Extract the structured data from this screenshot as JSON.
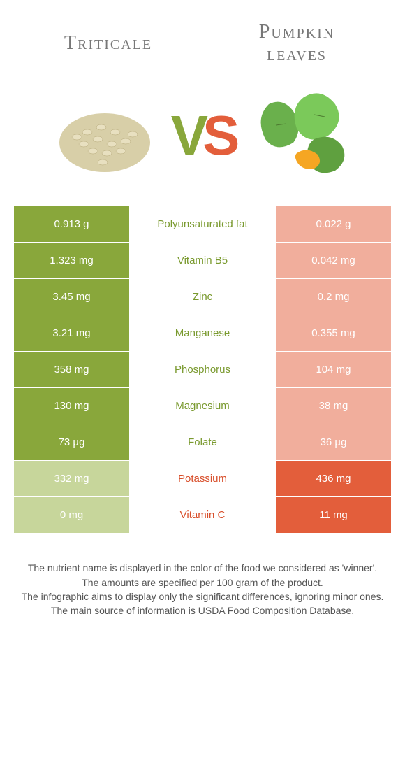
{
  "left_food": "Triticale",
  "right_food_line1": "Pumpkin",
  "right_food_line2": "leaves",
  "vs_v": "V",
  "vs_s": "S",
  "colors": {
    "green_strong": "#89a73b",
    "green_weak": "#c7d69b",
    "orange_strong": "#e35e3b",
    "orange_weak": "#f1ae9c",
    "label_green": "#7a9a2f",
    "label_orange": "#d84e2a"
  },
  "rows": [
    {
      "left": "0.913 g",
      "label": "Polyunsaturated fat",
      "right": "0.022 g",
      "winner": "left"
    },
    {
      "left": "1.323 mg",
      "label": "Vitamin B5",
      "right": "0.042 mg",
      "winner": "left"
    },
    {
      "left": "3.45 mg",
      "label": "Zinc",
      "right": "0.2 mg",
      "winner": "left"
    },
    {
      "left": "3.21 mg",
      "label": "Manganese",
      "right": "0.355 mg",
      "winner": "left"
    },
    {
      "left": "358 mg",
      "label": "Phosphorus",
      "right": "104 mg",
      "winner": "left"
    },
    {
      "left": "130 mg",
      "label": "Magnesium",
      "right": "38 mg",
      "winner": "left"
    },
    {
      "left": "73 µg",
      "label": "Folate",
      "right": "36 µg",
      "winner": "left"
    },
    {
      "left": "332 mg",
      "label": "Potassium",
      "right": "436 mg",
      "winner": "right"
    },
    {
      "left": "0 mg",
      "label": "Vitamin C",
      "right": "11 mg",
      "winner": "right"
    }
  ],
  "footer_lines": [
    "The nutrient name is displayed in the color of the food we considered as 'winner'.",
    "The amounts are specified per 100 gram of the product.",
    "The infographic aims to display only the significant differences, ignoring minor ones.",
    "The main source of information is USDA Food Composition Database."
  ]
}
